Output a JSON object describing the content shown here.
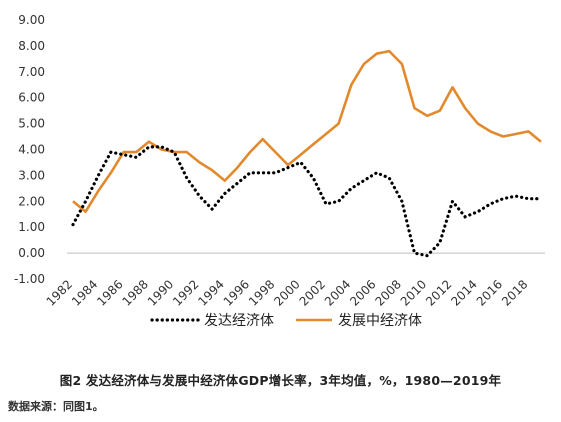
{
  "caption": "图2 发达经济体与发展中经济体GDP增长率，3年均值，%，1980—2019年",
  "source": "数据来源：同图1。",
  "colors": {
    "developed": "#000000",
    "developing": "#E3892D",
    "axis": "#bfbfbf"
  },
  "chart_data": {
    "type": "line",
    "title": "",
    "xlabel": "",
    "ylabel": "",
    "ylim": [
      -1,
      9
    ],
    "yticks": [
      -1,
      0,
      1,
      2,
      3,
      4,
      5,
      6,
      7,
      8,
      9
    ],
    "ytick_labels": [
      "-1.00",
      "0.00",
      "1.00",
      "2.00",
      "3.00",
      "4.00",
      "5.00",
      "6.00",
      "7.00",
      "8.00",
      "9.00"
    ],
    "xticks": [
      "1982",
      "1984",
      "1986",
      "1988",
      "1990",
      "1992",
      "1994",
      "1996",
      "1998",
      "2000",
      "2002",
      "2004",
      "2006",
      "2008",
      "2010",
      "2012",
      "2014",
      "2016",
      "2018"
    ],
    "x": [
      1982,
      1983,
      1984,
      1985,
      1986,
      1987,
      1988,
      1989,
      1990,
      1991,
      1992,
      1993,
      1994,
      1995,
      1996,
      1997,
      1998,
      1999,
      2000,
      2001,
      2002,
      2003,
      2004,
      2005,
      2006,
      2007,
      2008,
      2009,
      2010,
      2011,
      2012,
      2013,
      2014,
      2015,
      2016,
      2017,
      2018,
      2019
    ],
    "grid": false,
    "legend_position": "bottom",
    "series": [
      {
        "name": "发达经济体",
        "style": "dotted",
        "values": [
          1.1,
          2.0,
          3.0,
          3.9,
          3.8,
          3.7,
          4.1,
          4.1,
          3.9,
          2.9,
          2.2,
          1.7,
          2.3,
          2.7,
          3.1,
          3.1,
          3.1,
          3.3,
          3.5,
          2.9,
          1.9,
          2.0,
          2.5,
          2.8,
          3.1,
          2.9,
          2.0,
          0.0,
          -0.1,
          0.4,
          2.0,
          1.4,
          1.6,
          1.9,
          2.1,
          2.2,
          2.1,
          2.1
        ]
      },
      {
        "name": "发展中经济体",
        "style": "solid",
        "values": [
          2.0,
          1.6,
          2.4,
          3.1,
          3.9,
          3.9,
          4.3,
          4.0,
          3.9,
          3.9,
          3.5,
          3.2,
          2.8,
          3.3,
          3.9,
          4.4,
          3.9,
          3.4,
          3.8,
          4.2,
          4.6,
          5.0,
          6.5,
          7.3,
          7.7,
          7.8,
          7.3,
          5.6,
          5.3,
          5.5,
          6.4,
          5.6,
          5.0,
          4.7,
          4.5,
          4.6,
          4.7,
          4.3
        ]
      }
    ]
  }
}
